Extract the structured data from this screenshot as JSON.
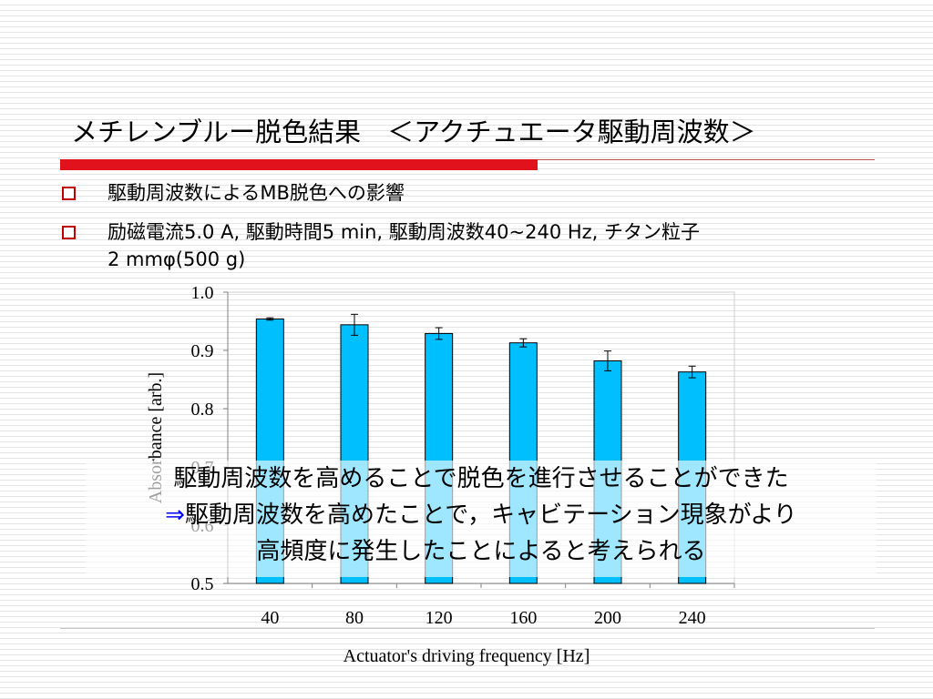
{
  "slide": {
    "title": "メチレンブルー脱色結果　＜アクチュエータ駆動周波数＞",
    "bullets": [
      {
        "text": "駆動周波数によるMB脱色への影響"
      },
      {
        "line1": "励磁電流5.0 A, 駆動時間5 min, 駆動周波数40~240 Hz, チタン粒子",
        "line2": "2 mmφ(500 g)"
      }
    ],
    "overlay": {
      "line1": "駆動周波数を高めることで脱色を進行させることができた",
      "arrow": "⇒",
      "line2": "駆動周波数を高めたことで，キャビテーション現象がより",
      "line3": "高頻度に発生したことによると考えられる"
    },
    "colors": {
      "bar": "#00bfff",
      "bullet_box": "#c00000",
      "accent_rule": "#e1121b",
      "arrow": "#0000ff"
    }
  },
  "chart_data": {
    "type": "bar",
    "categories": [
      "40",
      "80",
      "120",
      "160",
      "200",
      "240"
    ],
    "values": [
      0.954,
      0.944,
      0.929,
      0.913,
      0.882,
      0.863
    ],
    "errors": [
      0.002,
      0.018,
      0.01,
      0.007,
      0.017,
      0.01
    ],
    "xlabel": "Actuator's driving frequency [Hz]",
    "ylabel": "Absorbance [arb.]",
    "ylim": [
      0.5,
      1.0
    ],
    "yticks": [
      "0.5",
      "0.6",
      "0.7",
      "0.8",
      "0.9",
      "1.0"
    ],
    "grid": false,
    "bar_color": "#00bfff"
  }
}
